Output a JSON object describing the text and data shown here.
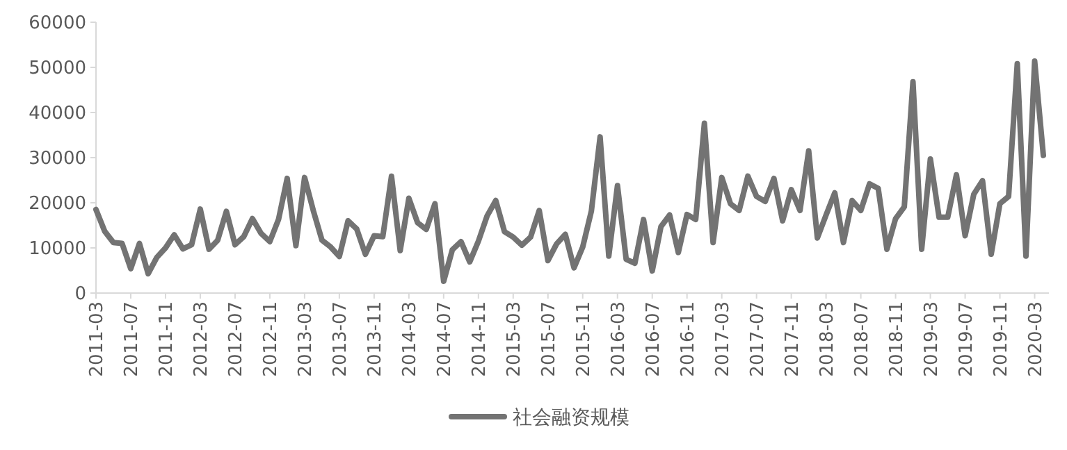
{
  "chart_data": {
    "type": "line",
    "categories": [
      "2011-03",
      null,
      null,
      null,
      "2011-07",
      null,
      null,
      null,
      "2011-11",
      null,
      null,
      null,
      "2012-03",
      null,
      null,
      null,
      "2012-07",
      null,
      null,
      null,
      "2012-11",
      null,
      null,
      null,
      "2013-03",
      null,
      null,
      null,
      "2013-07",
      null,
      null,
      null,
      "2013-11",
      null,
      null,
      null,
      "2014-03",
      null,
      null,
      null,
      "2014-07",
      null,
      null,
      null,
      "2014-11",
      null,
      null,
      null,
      "2015-03",
      null,
      null,
      null,
      "2015-07",
      null,
      null,
      null,
      "2015-11",
      null,
      null,
      null,
      "2016-03",
      null,
      null,
      null,
      "2016-07",
      null,
      null,
      null,
      "2016-11",
      null,
      null,
      null,
      "2017-03",
      null,
      null,
      null,
      "2017-07",
      null,
      null,
      null,
      "2017-11",
      null,
      null,
      null,
      "2018-03",
      null,
      null,
      null,
      "2018-07",
      null,
      null,
      null,
      "2018-11",
      null,
      null,
      null,
      "2019-03",
      null,
      null,
      null,
      "2019-07",
      null,
      null,
      null,
      "2019-11",
      null,
      null,
      null,
      "2020-03",
      null
    ],
    "series": [
      {
        "name": "社会融资规模",
        "color": "#737373",
        "values": [
          18500,
          13700,
          11200,
          11000,
          5400,
          11000,
          4300,
          7900,
          10000,
          12900,
          9800,
          10700,
          18600,
          9700,
          11700,
          18100,
          10700,
          12500,
          16500,
          13200,
          11400,
          16300,
          25400,
          10500,
          25600,
          18300,
          11700,
          10200,
          8100,
          16000,
          14200,
          8600,
          12700,
          12500,
          25900,
          9400,
          21000,
          15600,
          14100,
          19800,
          2600,
          9600,
          11400,
          6900,
          11500,
          17100,
          20500,
          13600,
          12400,
          10600,
          12400,
          18300,
          7200,
          10900,
          13000,
          5600,
          10200,
          18200,
          34600,
          8200,
          23800,
          7500,
          6600,
          16300,
          4900,
          14700,
          17300,
          9000,
          17400,
          16300,
          37600,
          11200,
          25600,
          19800,
          18300,
          25900,
          21400,
          20300,
          25400,
          16000,
          22900,
          18300,
          31500,
          12200,
          17300,
          22200,
          11200,
          20500,
          18300,
          24200,
          23200,
          9700,
          16500,
          19100,
          46800,
          9700,
          29700,
          16800,
          16800,
          26200,
          12700,
          21900,
          24900,
          8600,
          19800,
          21400,
          50800,
          8200,
          51400,
          30500
        ]
      }
    ],
    "ylim": [
      0,
      60000
    ],
    "yticks": [
      0,
      10000,
      20000,
      30000,
      40000,
      50000,
      60000
    ],
    "grid": false,
    "legend": "bottom",
    "marker": "none",
    "line_style": "solid"
  }
}
